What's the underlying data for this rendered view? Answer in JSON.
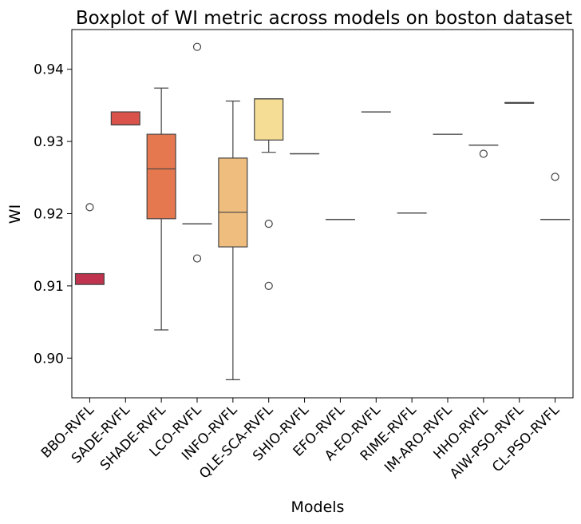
{
  "chart_data": {
    "type": "boxplot",
    "title": "Boxplot of WI metric across models on boston dataset",
    "xlabel": "Models",
    "ylabel": "WI",
    "ylim": [
      0.8945,
      0.9455
    ],
    "yticks": [
      0.9,
      0.91,
      0.92,
      0.93,
      0.94
    ],
    "ytick_labels": [
      "0.90",
      "0.91",
      "0.92",
      "0.93",
      "0.94"
    ],
    "grid": false,
    "legend": "none",
    "series": [
      {
        "category": "BBO-RVFL",
        "color": "#c0334e",
        "q1": 0.9102,
        "median": 0.9102,
        "q3": 0.9117,
        "whisker_low": 0.9102,
        "whisker_high": 0.9117,
        "outliers": [
          0.9209
        ]
      },
      {
        "category": "SADE-RVFL",
        "color": "#d9534b",
        "q1": 0.9323,
        "median": 0.9323,
        "q3": 0.9341,
        "whisker_low": 0.9323,
        "whisker_high": 0.9341,
        "outliers": []
      },
      {
        "category": "SHADE-RVFL",
        "color": "#e6784f",
        "q1": 0.9193,
        "median": 0.9262,
        "q3": 0.931,
        "whisker_low": 0.9039,
        "whisker_high": 0.9374,
        "outliers": []
      },
      {
        "category": "LCO-RVFL",
        "color": "#ed8f5c",
        "q1": 0.9186,
        "median": 0.9186,
        "q3": 0.9186,
        "whisker_low": 0.9186,
        "whisker_high": 0.9186,
        "outliers": [
          0.9431,
          0.9138
        ]
      },
      {
        "category": "INFO-RVFL",
        "color": "#efbd7e",
        "q1": 0.9154,
        "median": 0.9202,
        "q3": 0.9277,
        "whisker_low": 0.897,
        "whisker_high": 0.9356,
        "outliers": []
      },
      {
        "category": "QLE-SCA-RVFL",
        "color": "#f6dd95",
        "q1": 0.9302,
        "median": 0.9359,
        "q3": 0.9359,
        "whisker_low": 0.9285,
        "whisker_high": 0.9359,
        "outliers": [
          0.9186,
          0.91
        ]
      },
      {
        "category": "SHIO-RVFL",
        "color": "#f9e7a7",
        "q1": 0.9283,
        "median": 0.9283,
        "q3": 0.9283,
        "whisker_low": 0.9283,
        "whisker_high": 0.9283,
        "outliers": []
      },
      {
        "category": "EFO-RVFL",
        "color": "#fbeeb6",
        "q1": 0.9192,
        "median": 0.9192,
        "q3": 0.9192,
        "whisker_low": 0.9192,
        "whisker_high": 0.9192,
        "outliers": []
      },
      {
        "category": "A-EO-RVFL",
        "color": "#f4f6c0",
        "q1": 0.9341,
        "median": 0.9341,
        "q3": 0.9341,
        "whisker_low": 0.9341,
        "whisker_high": 0.9341,
        "outliers": []
      },
      {
        "category": "RIME-RVFL",
        "color": "#e9f4bc",
        "q1": 0.9201,
        "median": 0.9201,
        "q3": 0.9201,
        "whisker_low": 0.9201,
        "whisker_high": 0.9201,
        "outliers": []
      },
      {
        "category": "IM-ARO-RVFL",
        "color": "#d9ecb6",
        "q1": 0.931,
        "median": 0.931,
        "q3": 0.931,
        "whisker_low": 0.931,
        "whisker_high": 0.931,
        "outliers": []
      },
      {
        "category": "HHO-RVFL",
        "color": "#c6e4b3",
        "q1": 0.9295,
        "median": 0.9295,
        "q3": 0.9295,
        "whisker_low": 0.9295,
        "whisker_high": 0.9295,
        "outliers": [
          0.9283
        ]
      },
      {
        "category": "AIW-PSO-RVFL",
        "color": "#b3dcb4",
        "q1": 0.9353,
        "median": 0.9353,
        "q3": 0.9354,
        "whisker_low": 0.9353,
        "whisker_high": 0.9354,
        "outliers": []
      },
      {
        "category": "CL-PSO-RVFL",
        "color": "#a2d4b5",
        "q1": 0.9192,
        "median": 0.9192,
        "q3": 0.9192,
        "whisker_low": 0.9192,
        "whisker_high": 0.9192,
        "outliers": [
          0.9251
        ]
      }
    ]
  }
}
